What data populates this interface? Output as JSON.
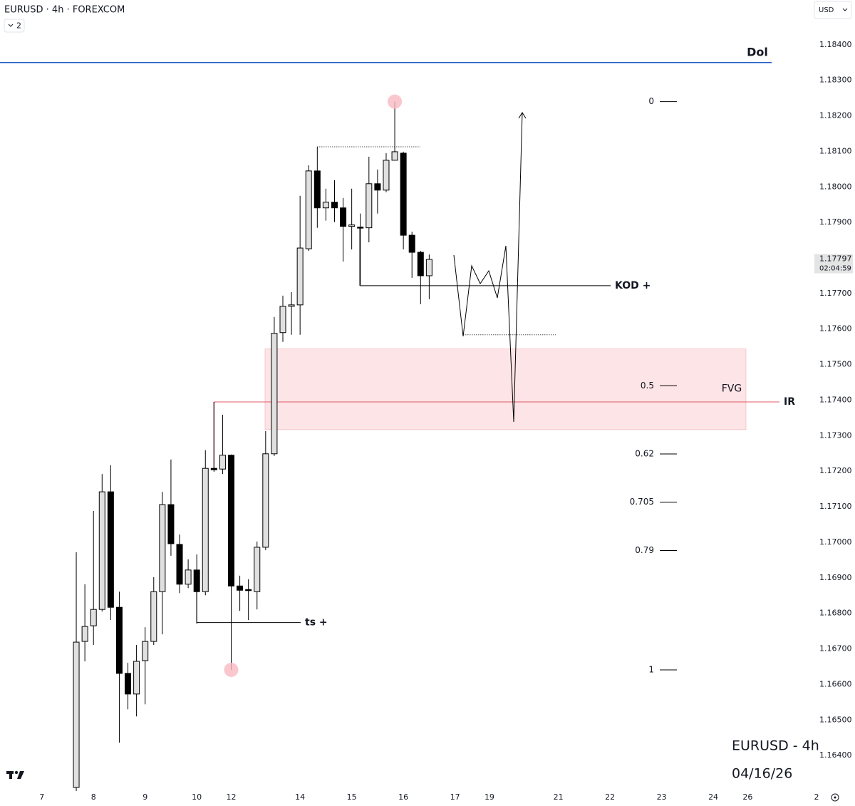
{
  "header": {
    "symbol": "EURUSD · 4h · FOREXCOM",
    "layouts": "2",
    "currency": "USD"
  },
  "chart_data": {
    "type": "candlestick",
    "open": [
      1.1631,
      1.16721,
      1.16765,
      1.16811,
      1.17142,
      1.16817,
      1.16631,
      1.16573,
      1.16667,
      1.16721,
      1.16861,
      1.17106,
      1.16994,
      1.16882,
      1.16922,
      1.16861,
      1.17208,
      1.17206,
      1.17245,
      1.16877,
      1.16867,
      1.16861,
      1.16986,
      1.17249,
      1.1759,
      1.17664,
      1.17668,
      1.17826,
      1.18045,
      1.17941,
      1.17957,
      1.17941,
      1.17889,
      1.17887,
      1.17885,
      1.18009,
      1.17991,
      1.18075,
      1.18095,
      1.17864,
      1.17816,
      1.1775
    ],
    "high": [
      1.16972,
      1.16882,
      1.17088,
      1.17192,
      1.17217,
      1.16861,
      1.16661,
      1.16711,
      1.16761,
      1.16902,
      1.17142,
      1.17233,
      1.17022,
      1.16952,
      1.16966,
      1.17259,
      1.17395,
      1.17359,
      1.17247,
      1.16906,
      1.16896,
      1.17002,
      1.17313,
      1.17634,
      1.17694,
      1.17704,
      1.17975,
      1.18061,
      1.18113,
      1.17995,
      1.18019,
      1.17969,
      1.17995,
      1.17925,
      1.18085,
      1.18049,
      1.18095,
      1.1824,
      1.18099,
      1.17874,
      1.1782,
      1.1781
    ],
    "low": [
      1.163,
      1.16665,
      1.16711,
      1.16805,
      1.16781,
      1.16436,
      1.1653,
      1.1651,
      1.16544,
      1.16711,
      1.16741,
      1.16962,
      1.16857,
      1.16871,
      1.16771,
      1.16851,
      1.17198,
      1.17192,
      1.16641,
      1.16807,
      1.16781,
      1.16811,
      1.16978,
      1.17243,
      1.17564,
      1.17584,
      1.17584,
      1.1782,
      1.17885,
      1.17905,
      1.17901,
      1.1779,
      1.17824,
      1.17724,
      1.17844,
      1.17925,
      1.17985,
      1.18075,
      1.17824,
      1.17744,
      1.1767,
      1.17684
    ],
    "close": [
      1.16719,
      1.16763,
      1.16811,
      1.17142,
      1.16817,
      1.16631,
      1.16573,
      1.16665,
      1.16721,
      1.16861,
      1.17106,
      1.16996,
      1.16882,
      1.16922,
      1.16861,
      1.17208,
      1.17204,
      1.17245,
      1.16877,
      1.16865,
      1.16865,
      1.16986,
      1.17249,
      1.17588,
      1.17664,
      1.17668,
      1.17828,
      1.18045,
      1.17941,
      1.17957,
      1.17941,
      1.17889,
      1.17893,
      1.17885,
      1.18009,
      1.17991,
      1.18075,
      1.18099,
      1.17864,
      1.17816,
      1.1775,
      1.17796
    ],
    "up_color": "#e0e0e0",
    "down_color": "#000000",
    "ylim": [
      1.1631,
      1.18526
    ],
    "yticks": [
      {
        "value": 1.184,
        "label": "1.18400"
      },
      {
        "value": 1.183,
        "label": "1.18300"
      },
      {
        "value": 1.182,
        "label": "1.18200"
      },
      {
        "value": 1.181,
        "label": "1.18100"
      },
      {
        "value": 1.18,
        "label": "1.18000"
      },
      {
        "value": 1.179,
        "label": "1.17900"
      },
      {
        "value": 1.178,
        "label": "1.17800"
      },
      {
        "value": 1.177,
        "label": "1.17700"
      },
      {
        "value": 1.176,
        "label": "1.17600"
      },
      {
        "value": 1.175,
        "label": "1.17500"
      },
      {
        "value": 1.174,
        "label": "1.17400"
      },
      {
        "value": 1.173,
        "label": "1.17300"
      },
      {
        "value": 1.172,
        "label": "1.17200"
      },
      {
        "value": 1.171,
        "label": "1.17100"
      },
      {
        "value": 1.17,
        "label": "1.17000"
      },
      {
        "value": 1.169,
        "label": "1.16900"
      },
      {
        "value": 1.168,
        "label": "1.16800"
      },
      {
        "value": 1.167,
        "label": "1.16700"
      },
      {
        "value": 1.166,
        "label": "1.16600"
      },
      {
        "value": 1.165,
        "label": "1.16500"
      },
      {
        "value": 1.164,
        "label": "1.16400"
      }
    ],
    "xlim": [
      -8.86,
      85.5
    ],
    "xticks": [
      {
        "value": -4,
        "label": "7"
      },
      {
        "value": 2,
        "label": "8"
      },
      {
        "value": 8,
        "label": "9"
      },
      {
        "value": 14,
        "label": "10"
      },
      {
        "value": 18,
        "label": "12"
      },
      {
        "value": 26,
        "label": "14"
      },
      {
        "value": 32,
        "label": "15"
      },
      {
        "value": 38,
        "label": "16"
      },
      {
        "value": 44,
        "label": "17"
      },
      {
        "value": 48,
        "label": "19"
      },
      {
        "value": 56,
        "label": "21"
      },
      {
        "value": 62,
        "label": "22"
      },
      {
        "value": 68,
        "label": "23"
      },
      {
        "value": 74,
        "label": "24"
      },
      {
        "value": 78,
        "label": "26"
      },
      {
        "value": 86,
        "label": "2"
      }
    ],
    "last_price": {
      "value": 1.17797,
      "countdown": "02:04:59"
    },
    "levels": [
      {
        "label": "Dol",
        "price": 1.1835,
        "color": "#1e5bc6"
      },
      {
        "label": "IR",
        "price": 1.17395,
        "color": "#e05a6a"
      },
      {
        "label": "KOD +",
        "price": 1.17722,
        "color": "#000000"
      },
      {
        "label": "ts +",
        "price": 1.16774,
        "color": "#000000"
      }
    ],
    "fvg": {
      "label": "FVG",
      "top": 1.17544,
      "bottom": 1.17317,
      "color": "#fde4e6"
    },
    "fib": {
      "levels": [
        0,
        0.5,
        0.62,
        0.705,
        0.79,
        1
      ],
      "high": 1.1824,
      "low": 1.16641
    },
    "dotted": [
      1.18113,
      1.17584
    ],
    "watermark": {
      "title": "EURUSD - 4h",
      "date": "04/16/26"
    }
  }
}
